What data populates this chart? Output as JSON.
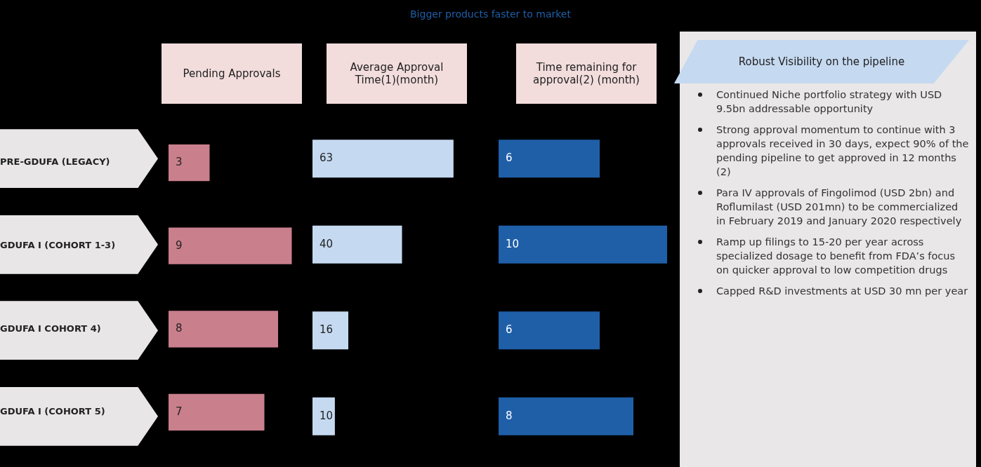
{
  "chart_data": [
    {
      "type": "bar",
      "orientation": "horizontal",
      "title": "Pending Approvals",
      "annotations": [
        "Bigger products faster to market"
      ],
      "categories": [
        "PRE-GDUFA (LEGACY)",
        "GDUFA I (COHORT 1-3)",
        "GDUFA I COHORT 4)",
        "GDUFA I (COHORT 5)"
      ],
      "values": [
        3,
        9,
        8,
        7
      ],
      "color": "#c97f8c",
      "data_labels": true,
      "tick_labels": "y"
    },
    {
      "type": "bar",
      "orientation": "horizontal",
      "title": "Average Approval Time(1)(month)",
      "categories": [
        null,
        null,
        null,
        null
      ],
      "values": [
        63,
        40,
        16,
        10
      ],
      "color": "#c5d9f1",
      "data_labels": true,
      "tick_labels": false
    },
    {
      "type": "bar",
      "orientation": "horizontal",
      "title": "Time remaining for approval(2) (month)",
      "categories": [
        null,
        null,
        null,
        null
      ],
      "values": [
        6,
        10,
        6,
        8
      ],
      "color": "#1f5fa8",
      "data_labels": true,
      "tick_labels": false
    },
    {
      "type": "other",
      "title": "Robust Visibility on the pipeline",
      "annotations": [
        "Continued Niche portfolio strategy with USD 9.5bn addressable opportunity",
        "Strong approval momentum to continue with 3 approvals received in 30 days, expect 90% of the pending pipeline to get approved in 12 months (2)",
        "Para IV approvals of Fingolimod (USD 2bn) and Roflumilast (USD 201mn) to be commercialized in February 2019 and January 2020 respectively",
        "Ramp up filings to 15-20 per year across specialized dosage to benefit from FDA’s focus on quicker approval to low competition drugs",
        "Capped R&D investments at USD 30 mn per year"
      ]
    }
  ]
}
